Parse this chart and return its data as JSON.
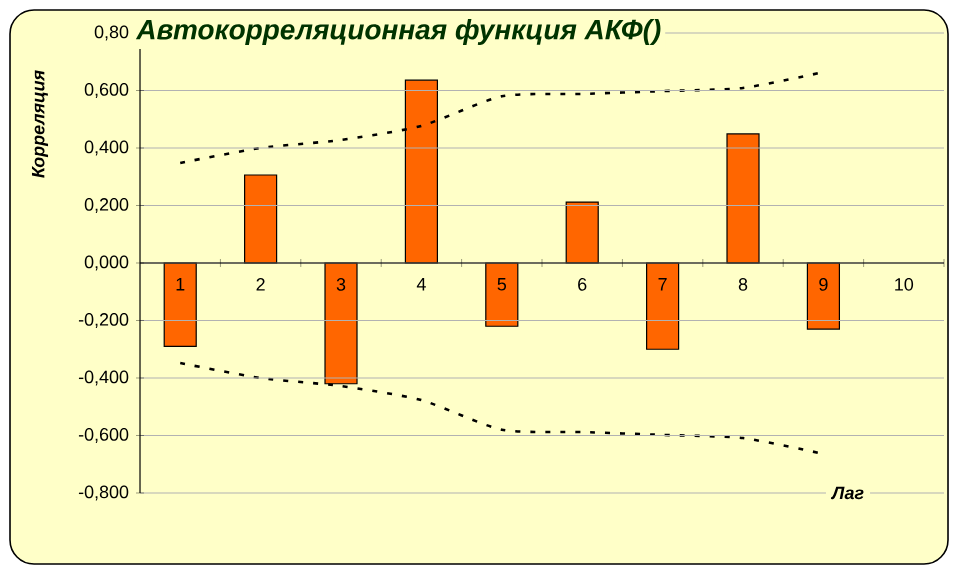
{
  "chart_data": {
    "type": "bar",
    "title": "Автокорреляционная функция АКФ()",
    "xlabel": "Лаг",
    "ylabel": "Корреляция",
    "categories": [
      "1",
      "2",
      "3",
      "4",
      "5",
      "6",
      "7",
      "8",
      "9",
      "10"
    ],
    "ylim": [
      -0.8,
      0.8
    ],
    "yticks": [
      {
        "value": -0.8,
        "label": "-0,800"
      },
      {
        "value": -0.6,
        "label": "-0,600"
      },
      {
        "value": -0.4,
        "label": "-0,400"
      },
      {
        "value": -0.2,
        "label": "-0,200"
      },
      {
        "value": 0,
        "label": "0,000"
      },
      {
        "value": 0.2,
        "label": "0,200"
      },
      {
        "value": 0.4,
        "label": "0,400"
      },
      {
        "value": 0.6,
        "label": "0,600"
      },
      {
        "value": 0.8,
        "label": "0,80"
      }
    ],
    "grid": "y",
    "marker": "none",
    "line_style": "dotted",
    "series": [
      {
        "color": "#ff6600",
        "values": [
          -0.29,
          0.306,
          -0.42,
          0.636,
          -0.22,
          0.212,
          -0.3,
          0.449,
          -0.23,
          null
        ]
      },
      {
        "type": "line",
        "color": "#000000",
        "values": [
          0.348,
          0.4,
          0.428,
          0.477,
          0.58,
          0.588,
          0.598,
          0.609,
          0.664,
          null
        ]
      },
      {
        "type": "line",
        "color": "#000000",
        "values": [
          -0.348,
          -0.4,
          -0.428,
          -0.477,
          -0.58,
          -0.588,
          -0.598,
          -0.609,
          -0.664,
          null
        ]
      }
    ]
  }
}
